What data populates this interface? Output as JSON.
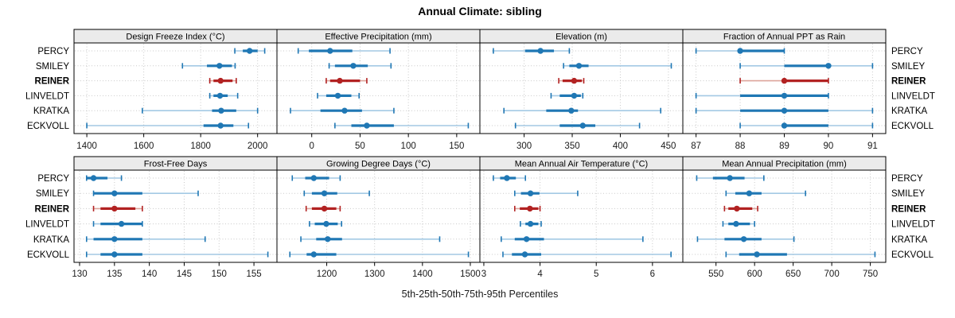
{
  "title": "Annual Climate: sibling",
  "footer": "5th-25th-50th-75th-95th Percentiles",
  "stations": [
    "PERCY",
    "SMILEY",
    "REINER",
    "LINVELDT",
    "KRATKA",
    "ECKVOLL"
  ],
  "highlight_station": "REINER",
  "colors": {
    "series_normal": "#1f77b4",
    "series_normal_light": "#a3c9e4",
    "series_highlight": "#b22222",
    "series_highlight_light": "#dda49b",
    "strip_bg": "#ebebeb",
    "panel_border": "#000000",
    "grid": "#c9c9c9",
    "tick_text": "#1a1a1a"
  },
  "chart_data": [
    {
      "type": "percentile-dotplot",
      "title": "Design Freeze Index (°C)",
      "xlim": [
        1355,
        2068
      ],
      "ticks": [
        1400,
        1600,
        1800,
        2000
      ],
      "percentile_labels": [
        "p5",
        "p25",
        "p50",
        "p75",
        "p95"
      ],
      "series": [
        {
          "name": "PERCY",
          "values": [
            1920,
            1948,
            1972,
            2000,
            2025
          ]
        },
        {
          "name": "SMILEY",
          "values": [
            1736,
            1822,
            1866,
            1910,
            1921
          ]
        },
        {
          "name": "REINER",
          "values": [
            1832,
            1845,
            1870,
            1912,
            1925
          ]
        },
        {
          "name": "LINVELDT",
          "values": [
            1832,
            1845,
            1868,
            1895,
            1930
          ]
        },
        {
          "name": "KRATKA",
          "values": [
            1595,
            1840,
            1872,
            1925,
            2000
          ]
        },
        {
          "name": "ECKVOLL",
          "values": [
            1400,
            1810,
            1870,
            1915,
            1968
          ]
        }
      ]
    },
    {
      "type": "percentile-dotplot",
      "title": "Effective Precipitation (mm)",
      "xlim": [
        -36,
        174
      ],
      "ticks": [
        0,
        50,
        100,
        150
      ],
      "percentile_labels": [
        "p5",
        "p25",
        "p50",
        "p75",
        "p95"
      ],
      "series": [
        {
          "name": "PERCY",
          "values": [
            -14,
            -3,
            19,
            42,
            81
          ]
        },
        {
          "name": "SMILEY",
          "values": [
            18,
            24,
            43,
            58,
            82
          ]
        },
        {
          "name": "REINER",
          "values": [
            15,
            19,
            29,
            50,
            57
          ]
        },
        {
          "name": "LINVELDT",
          "values": [
            6,
            15,
            27,
            41,
            49
          ]
        },
        {
          "name": "KRATKA",
          "values": [
            -22,
            9,
            34,
            52,
            85
          ]
        },
        {
          "name": "ECKVOLL",
          "values": [
            24,
            41,
            57,
            85,
            162
          ]
        }
      ]
    },
    {
      "type": "percentile-dotplot",
      "title": "Elevation (m)",
      "xlim": [
        254,
        465
      ],
      "ticks": [
        300,
        350,
        400,
        450
      ],
      "percentile_labels": [
        "p5",
        "p25",
        "p50",
        "p75",
        "p95"
      ],
      "series": [
        {
          "name": "PERCY",
          "values": [
            268,
            301,
            317,
            331,
            347
          ]
        },
        {
          "name": "SMILEY",
          "values": [
            341,
            347,
            357,
            367,
            453
          ]
        },
        {
          "name": "REINER",
          "values": [
            336,
            340,
            352,
            360,
            362
          ]
        },
        {
          "name": "LINVELDT",
          "values": [
            328,
            337,
            352,
            359,
            361
          ]
        },
        {
          "name": "KRATKA",
          "values": [
            279,
            323,
            349,
            356,
            442
          ]
        },
        {
          "name": "ECKVOLL",
          "values": [
            291,
            337,
            361,
            374,
            420
          ]
        }
      ]
    },
    {
      "type": "percentile-dotplot",
      "title": "Fraction of Annual PPT as Rain",
      "xlim": [
        86.7,
        91.3
      ],
      "ticks": [
        87,
        88,
        89,
        90,
        91
      ],
      "percentile_labels": [
        "p5",
        "p25",
        "p50",
        "p75",
        "p95"
      ],
      "series": [
        {
          "name": "PERCY",
          "values": [
            87,
            88,
            88,
            89,
            89
          ]
        },
        {
          "name": "SMILEY",
          "values": [
            88,
            89,
            90,
            90,
            91
          ]
        },
        {
          "name": "REINER",
          "values": [
            88,
            89,
            89,
            90,
            90
          ]
        },
        {
          "name": "LINVELDT",
          "values": [
            87,
            88,
            89,
            90,
            90
          ]
        },
        {
          "name": "KRATKA",
          "values": [
            87,
            88,
            89,
            90,
            91
          ]
        },
        {
          "name": "ECKVOLL",
          "values": [
            88,
            89,
            89,
            90,
            91
          ]
        }
      ]
    },
    {
      "type": "percentile-dotplot",
      "title": "Frost-Free Days",
      "xlim": [
        129.2,
        158.3
      ],
      "ticks": [
        130,
        135,
        140,
        145,
        150,
        155
      ],
      "percentile_labels": [
        "p5",
        "p25",
        "p50",
        "p75",
        "p95"
      ],
      "series": [
        {
          "name": "PERCY",
          "values": [
            131,
            131,
            132,
            134,
            136
          ]
        },
        {
          "name": "SMILEY",
          "values": [
            132,
            132,
            135,
            139,
            147
          ]
        },
        {
          "name": "REINER",
          "values": [
            132,
            133,
            135,
            138,
            139
          ]
        },
        {
          "name": "LINVELDT",
          "values": [
            132,
            133,
            136,
            139,
            139
          ]
        },
        {
          "name": "KRATKA",
          "values": [
            131,
            132,
            135,
            139,
            148
          ]
        },
        {
          "name": "ECKVOLL",
          "values": [
            131,
            133,
            135,
            139,
            157
          ]
        }
      ]
    },
    {
      "type": "percentile-dotplot",
      "title": "Growing Degree Days (°C)",
      "xlim": [
        1096,
        1520
      ],
      "ticks": [
        1200,
        1300,
        1400,
        1500
      ],
      "percentile_labels": [
        "p5",
        "p25",
        "p50",
        "p75",
        "p95"
      ],
      "series": [
        {
          "name": "PERCY",
          "values": [
            1128,
            1155,
            1173,
            1205,
            1228
          ]
        },
        {
          "name": "SMILEY",
          "values": [
            1153,
            1169,
            1195,
            1222,
            1289
          ]
        },
        {
          "name": "REINER",
          "values": [
            1157,
            1169,
            1195,
            1220,
            1228
          ]
        },
        {
          "name": "LINVELDT",
          "values": [
            1164,
            1175,
            1199,
            1223,
            1231
          ]
        },
        {
          "name": "KRATKA",
          "values": [
            1146,
            1178,
            1202,
            1232,
            1436
          ]
        },
        {
          "name": "ECKVOLL",
          "values": [
            1123,
            1158,
            1173,
            1220,
            1496
          ]
        }
      ]
    },
    {
      "type": "percentile-dotplot",
      "title": "Mean Annual Air Temperature (°C)",
      "xlim": [
        2.93,
        6.54
      ],
      "ticks": [
        3,
        4,
        5,
        6
      ],
      "percentile_labels": [
        "p5",
        "p25",
        "p50",
        "p75",
        "p95"
      ],
      "series": [
        {
          "name": "PERCY",
          "values": [
            3.17,
            3.29,
            3.41,
            3.57,
            3.74
          ]
        },
        {
          "name": "SMILEY",
          "values": [
            3.55,
            3.66,
            3.83,
            3.99,
            4.67
          ]
        },
        {
          "name": "REINER",
          "values": [
            3.55,
            3.64,
            3.82,
            3.97,
            4.0
          ]
        },
        {
          "name": "LINVELDT",
          "values": [
            3.65,
            3.74,
            3.83,
            3.97,
            4.02
          ]
        },
        {
          "name": "KRATKA",
          "values": [
            3.31,
            3.55,
            3.76,
            4.07,
            5.83
          ]
        },
        {
          "name": "ECKVOLL",
          "values": [
            3.34,
            3.5,
            3.73,
            4.02,
            6.33
          ]
        }
      ]
    },
    {
      "type": "percentile-dotplot",
      "title": "Mean Annual Precipitation (mm)",
      "xlim": [
        507,
        770
      ],
      "ticks": [
        550,
        600,
        650,
        700,
        750
      ],
      "percentile_labels": [
        "p5",
        "p25",
        "p50",
        "p75",
        "p95"
      ],
      "series": [
        {
          "name": "PERCY",
          "values": [
            525,
            546,
            568,
            587,
            612
          ]
        },
        {
          "name": "SMILEY",
          "values": [
            563,
            575,
            593,
            609,
            666
          ]
        },
        {
          "name": "REINER",
          "values": [
            561,
            566,
            577,
            597,
            604
          ]
        },
        {
          "name": "LINVELDT",
          "values": [
            559,
            566,
            576,
            594,
            600
          ]
        },
        {
          "name": "KRATKA",
          "values": [
            526,
            561,
            586,
            609,
            651
          ]
        },
        {
          "name": "ECKVOLL",
          "values": [
            563,
            580,
            603,
            642,
            756
          ]
        }
      ]
    }
  ]
}
